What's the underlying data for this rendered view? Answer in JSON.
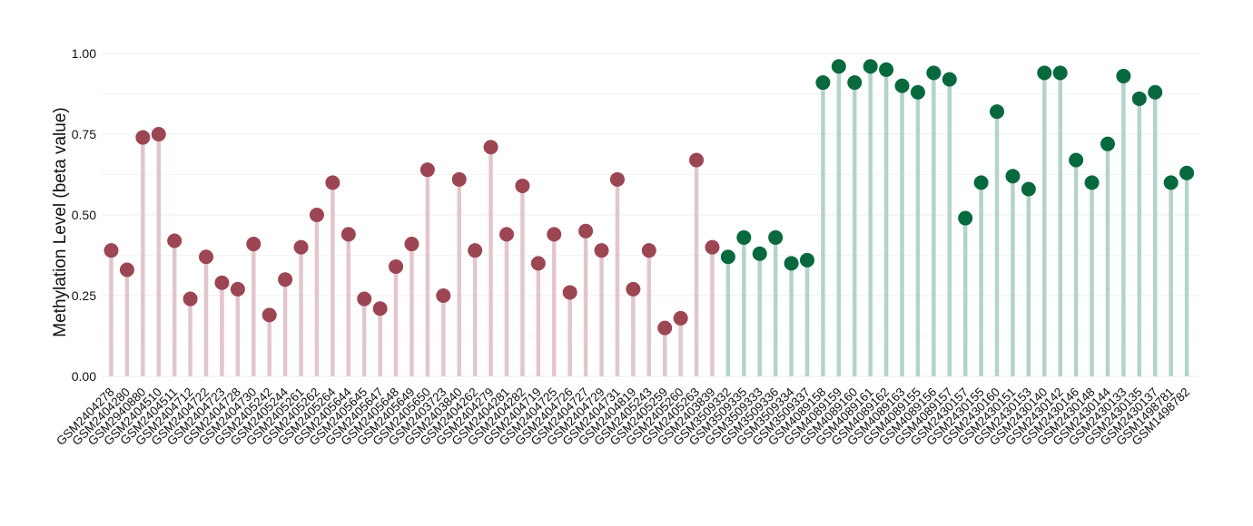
{
  "chart_data": {
    "type": "lollipop",
    "title": "",
    "xlabel": "",
    "ylabel": "Methylation Level (beta value)",
    "ylim": [
      0,
      1
    ],
    "yticks": [
      "0.00",
      "0.25",
      "0.50",
      "0.75",
      "1.00"
    ],
    "ytick_values": [
      0,
      0.25,
      0.5,
      0.75,
      1.0
    ],
    "grid": true,
    "legend": "none",
    "colors": {
      "group1_point": "#9c4553",
      "group1_stem": "#e2c6cb",
      "group2_point": "#08693f",
      "group2_stem": "#b4d3c9",
      "grid": "#ececec"
    },
    "categories": [
      "GSM2404278",
      "GSM2404280",
      "GSM2940880",
      "GSM2404510",
      "GSM2404511",
      "GSM2404712",
      "GSM2404722",
      "GSM2404723",
      "GSM2404728",
      "GSM2404730",
      "GSM2405242",
      "GSM2405244",
      "GSM2405261",
      "GSM2405262",
      "GSM2405264",
      "GSM2405644",
      "GSM2405645",
      "GSM2405647",
      "GSM2405648",
      "GSM2405649",
      "GSM2405650",
      "GSM2403723",
      "GSM2403840",
      "GSM2404262",
      "GSM2404279",
      "GSM2404281",
      "GSM2404282",
      "GSM2404719",
      "GSM2404725",
      "GSM2404726",
      "GSM2404727",
      "GSM2404729",
      "GSM2404731",
      "GSM2404819",
      "GSM2405243",
      "GSM2405259",
      "GSM2405260",
      "GSM2405263",
      "GSM2403839",
      "GSM3509332",
      "GSM3509335",
      "GSM3509333",
      "GSM3509336",
      "GSM3509334",
      "GSM3509337",
      "GSM4089158",
      "GSM4089159",
      "GSM4089160",
      "GSM4089161",
      "GSM4089162",
      "GSM4089163",
      "GSM4089155",
      "GSM4089156",
      "GSM4089157",
      "GSM2430157",
      "GSM2430155",
      "GSM2430160",
      "GSM2430151",
      "GSM2430153",
      "GSM2430140",
      "GSM2430142",
      "GSM2430146",
      "GSM2430148",
      "GSM2430144",
      "GSM2430133",
      "GSM2430135",
      "GSM2430137",
      "GSM1498781",
      "GSM1498782"
    ],
    "values": [
      0.39,
      0.33,
      0.74,
      0.75,
      0.42,
      0.24,
      0.37,
      0.29,
      0.27,
      0.41,
      0.19,
      0.3,
      0.4,
      0.5,
      0.6,
      0.44,
      0.24,
      0.21,
      0.34,
      0.41,
      0.64,
      0.25,
      0.61,
      0.39,
      0.71,
      0.44,
      0.59,
      0.35,
      0.44,
      0.26,
      0.45,
      0.39,
      0.61,
      0.27,
      0.39,
      0.15,
      0.18,
      0.67,
      0.4,
      0.37,
      0.43,
      0.38,
      0.43,
      0.35,
      0.36,
      0.91,
      0.96,
      0.91,
      0.96,
      0.95,
      0.9,
      0.88,
      0.94,
      0.92,
      0.49,
      0.6,
      0.82,
      0.62,
      0.58,
      0.94,
      0.94,
      0.67,
      0.6,
      0.72,
      0.93,
      0.86,
      0.88,
      0.6,
      0.63
    ],
    "groups": [
      1,
      1,
      1,
      1,
      1,
      1,
      1,
      1,
      1,
      1,
      1,
      1,
      1,
      1,
      1,
      1,
      1,
      1,
      1,
      1,
      1,
      1,
      1,
      1,
      1,
      1,
      1,
      1,
      1,
      1,
      1,
      1,
      1,
      1,
      1,
      1,
      1,
      1,
      1,
      2,
      2,
      2,
      2,
      2,
      2,
      2,
      2,
      2,
      2,
      2,
      2,
      2,
      2,
      2,
      2,
      2,
      2,
      2,
      2,
      2,
      2,
      2,
      2,
      2,
      2,
      2,
      2,
      2,
      2
    ]
  }
}
